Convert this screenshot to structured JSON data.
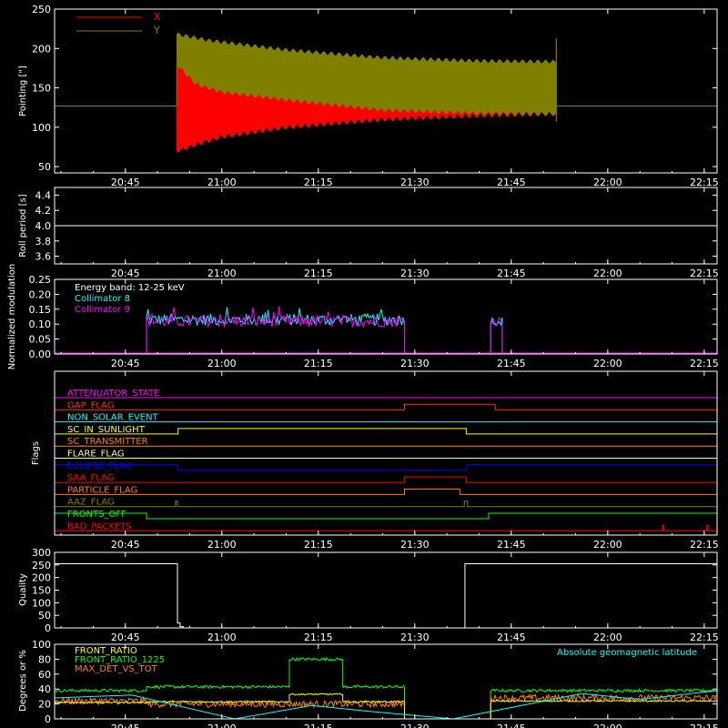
{
  "figure": {
    "background": "#000000",
    "foreground": "#ffffff"
  },
  "time_axis": {
    "min_minutes": 1234,
    "max_minutes": 1337,
    "tick_minutes": [
      1245,
      1260,
      1275,
      1290,
      1305,
      1320,
      1335
    ],
    "tick_labels": [
      "20:45",
      "21:00",
      "21:15",
      "21:30",
      "21:45",
      "22:00",
      "22:15"
    ]
  },
  "chart_data": [
    {
      "id": "pointing",
      "type": "area",
      "ylabel": "Pointing [\"]",
      "ylim": [
        42,
        250
      ],
      "yticks": [
        50,
        100,
        150,
        200,
        250
      ],
      "series": [
        {
          "name": "X",
          "color": "#ff0000",
          "baseline_before": 127,
          "baseline_after": 127,
          "envelope_start": "20:53",
          "envelope_end": "21:52",
          "upper": [
            [
              1253,
              215
            ],
            [
              1258,
              205
            ],
            [
              1270,
              195
            ],
            [
              1285,
              185
            ],
            [
              1300,
              182
            ],
            [
              1312,
              181
            ]
          ],
          "lower": [
            [
              1253,
              70
            ],
            [
              1256,
              78
            ],
            [
              1260,
              88
            ],
            [
              1270,
              100
            ],
            [
              1285,
              110
            ],
            [
              1300,
              115
            ],
            [
              1312,
              117
            ]
          ]
        },
        {
          "name": "Y",
          "color": "#808000",
          "baseline_before": 127,
          "baseline_after": 127,
          "envelope_start": "20:53",
          "envelope_end": "21:52",
          "upper": [
            [
              1253,
              218
            ],
            [
              1258,
              210
            ],
            [
              1270,
              198
            ],
            [
              1285,
              188
            ],
            [
              1300,
              184
            ],
            [
              1312,
              183
            ]
          ],
          "lower": [
            [
              1253,
              180
            ],
            [
              1256,
              155
            ],
            [
              1260,
              145
            ],
            [
              1270,
              135
            ],
            [
              1285,
              122
            ],
            [
              1300,
              118
            ],
            [
              1312,
              117
            ]
          ]
        }
      ]
    },
    {
      "id": "roll",
      "type": "line",
      "ylabel": "Roll period [s]",
      "ylim": [
        3.5,
        4.5
      ],
      "yticks": [
        3.6,
        3.8,
        4.0,
        4.2,
        4.4
      ],
      "ytick_labels": [
        "3.6",
        "3.8",
        "4.0",
        "4.2",
        "4.4"
      ],
      "series": [
        {
          "color": "#ffffff",
          "points": [
            [
              1234,
              4.0
            ],
            [
              1337,
              4.0
            ]
          ]
        }
      ]
    },
    {
      "id": "modulation",
      "type": "line",
      "ylabel": "Normalized modulation",
      "ylim": [
        0.0,
        0.25
      ],
      "yticks": [
        0.0,
        0.05,
        0.1,
        0.15,
        0.2,
        0.25
      ],
      "ytick_labels": [
        "0.00",
        "0.05",
        "0.10",
        "0.15",
        "0.20",
        "0.25"
      ],
      "annotation": "Energy band: 12-25 keV",
      "series": [
        {
          "name": "Collimator 8",
          "color": "#00ffff",
          "segments": [
            {
              "start": 1248.3,
              "end": 1288.4,
              "level": 0.115,
              "spread": 0.02
            },
            {
              "start": 1301.8,
              "end": 1303.6,
              "level": 0.11,
              "spread": 0.015
            }
          ]
        },
        {
          "name": "Collimator 9",
          "color": "#ff00ff",
          "segments": [
            {
              "start": 1248.3,
              "end": 1288.4,
              "level": 0.11,
              "spread": 0.02
            },
            {
              "start": 1301.8,
              "end": 1303.6,
              "level": 0.11,
              "spread": 0.015
            }
          ]
        }
      ]
    },
    {
      "id": "flags",
      "type": "line",
      "ylabel": "Flags",
      "series": [
        {
          "name": "ATTENUATOR_STATE",
          "color": "#ff00ff",
          "steps": [
            [
              1234,
              0
            ]
          ]
        },
        {
          "name": "GAP_FLAG",
          "color": "#ff3300",
          "steps": [
            [
              1234,
              0
            ],
            [
              1288.4,
              1
            ],
            [
              1302.5,
              0
            ]
          ]
        },
        {
          "name": "NON_SOLAR_EVENT",
          "color": "#00ffff",
          "steps": [
            [
              1234,
              0
            ]
          ]
        },
        {
          "name": "SC_IN_SUNLIGHT",
          "color": "#ffff00",
          "steps": [
            [
              1234,
              0
            ],
            [
              1253.2,
              1
            ],
            [
              1298,
              0
            ]
          ]
        },
        {
          "name": "SC_TRANSMITTER",
          "color": "#ff8000",
          "steps": [
            [
              1234,
              0
            ]
          ]
        },
        {
          "name": "FLARE_FLAG",
          "color": "#ffff66",
          "steps": [
            [
              1234,
              0
            ]
          ]
        },
        {
          "name": "ECLIPSE_FLAG",
          "color": "#0000ff",
          "steps": [
            [
              1234,
              1
            ],
            [
              1253.2,
              0
            ],
            [
              1298,
              1
            ]
          ]
        },
        {
          "name": "SAA_FLAG",
          "color": "#ff0000",
          "steps": [
            [
              1234,
              0
            ],
            [
              1288.4,
              1
            ],
            [
              1298,
              0
            ]
          ]
        },
        {
          "name": "PARTICLE_FLAG",
          "color": "#ff8000",
          "steps": [
            [
              1234,
              0
            ],
            [
              1288.4,
              1
            ],
            [
              1297,
              0
            ]
          ]
        },
        {
          "name": "AAZ_FLAG",
          "color": "#808000",
          "steps": [
            [
              1234,
              0
            ],
            [
              1252.8,
              1
            ],
            [
              1253.1,
              0
            ],
            [
              1297.7,
              1
            ],
            [
              1298.2,
              0
            ]
          ]
        },
        {
          "name": "FRONTS_OFF",
          "color": "#00ff00",
          "steps": [
            [
              1234,
              1
            ],
            [
              1248.3,
              0
            ],
            [
              1301.5,
              1
            ]
          ]
        },
        {
          "name": "BAD_PACKETS",
          "color": "#ff0000",
          "steps": [
            [
              1234,
              0
            ],
            [
              1328.5,
              1
            ],
            [
              1328.7,
              0
            ],
            [
              1335.4,
              1
            ],
            [
              1335.6,
              0
            ]
          ]
        }
      ]
    },
    {
      "id": "quality",
      "type": "line",
      "ylabel": "Quality",
      "ylim": [
        0,
        300
      ],
      "yticks": [
        0,
        50,
        100,
        150,
        200,
        250,
        300
      ],
      "series": [
        {
          "color": "#ffffff",
          "steps": [
            [
              1234,
              255
            ],
            [
              1253.1,
              20
            ],
            [
              1253.5,
              5
            ],
            [
              1254,
              0
            ],
            [
              1297.8,
              255
            ]
          ]
        }
      ]
    },
    {
      "id": "ratios",
      "type": "line",
      "ylabel": "Degrees or %",
      "ylim": [
        0,
        100
      ],
      "yticks": [
        0,
        20,
        40,
        60,
        80,
        100
      ],
      "series": [
        {
          "name": "FRONT_RATIO",
          "color": "#ffff00",
          "segments": [
            {
              "start": 1234,
              "end": 1248.3,
              "level": 22
            },
            {
              "start": 1248.3,
              "end": 1270.5,
              "level": 23
            },
            {
              "start": 1270.5,
              "end": 1278.8,
              "level": 33
            },
            {
              "start": 1278.8,
              "end": 1288.4,
              "level": 23
            },
            {
              "start": 1301.8,
              "end": 1337,
              "level": 24
            }
          ]
        },
        {
          "name": "FRONT_RATIO_1225",
          "color": "#00ff00",
          "segments": [
            {
              "start": 1234,
              "end": 1248.3,
              "level": 38
            },
            {
              "start": 1248.3,
              "end": 1270.5,
              "level": 43
            },
            {
              "start": 1270.5,
              "end": 1278.8,
              "level": 80
            },
            {
              "start": 1278.8,
              "end": 1288.4,
              "level": 43
            },
            {
              "start": 1301.8,
              "end": 1337,
              "level": 38
            }
          ]
        },
        {
          "name": "MAX_DET_VS_TOT",
          "color": "#ff8000",
          "segments": [
            {
              "start": 1234,
              "end": 1248.3,
              "level": 24
            },
            {
              "start": 1248.3,
              "end": 1288.4,
              "level": 20
            },
            {
              "start": 1301.8,
              "end": 1337,
              "level": 28
            }
          ]
        },
        {
          "name": "Absolute geomagnetic latitude",
          "color": "#00ffff",
          "points": [
            [
              1234,
              28
            ],
            [
              1246,
              32
            ],
            [
              1262,
              0
            ],
            [
              1274,
              18
            ],
            [
              1283,
              10
            ],
            [
              1296,
              0
            ],
            [
              1316,
              34
            ],
            [
              1325,
              26
            ],
            [
              1337,
              38
            ]
          ]
        }
      ]
    }
  ]
}
